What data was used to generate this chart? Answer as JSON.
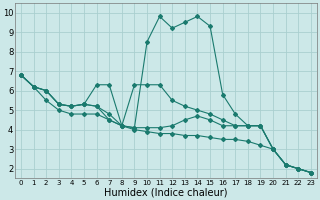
{
  "xlabel": "Humidex (Indice chaleur)",
  "bg_color": "#cce8e8",
  "grid_color": "#aacfcf",
  "line_color": "#1a7a6e",
  "xlim": [
    -0.5,
    23.5
  ],
  "ylim": [
    1.5,
    10.5
  ],
  "xticks": [
    0,
    1,
    2,
    3,
    4,
    5,
    6,
    7,
    8,
    9,
    10,
    11,
    12,
    13,
    14,
    15,
    16,
    17,
    18,
    19,
    20,
    21,
    22,
    23
  ],
  "yticks": [
    2,
    3,
    4,
    5,
    6,
    7,
    8,
    9,
    10
  ],
  "series": [
    [
      6.8,
      6.2,
      6.0,
      5.3,
      5.2,
      5.3,
      5.2,
      4.8,
      4.2,
      4.1,
      8.5,
      9.8,
      9.2,
      9.5,
      9.8,
      9.3,
      5.8,
      4.8,
      4.2,
      4.2,
      3.0,
      2.2,
      2.0,
      1.8
    ],
    [
      6.8,
      6.2,
      6.0,
      5.3,
      5.2,
      5.3,
      6.3,
      6.3,
      4.2,
      6.3,
      6.3,
      6.3,
      5.5,
      5.2,
      5.0,
      4.8,
      4.5,
      4.2,
      4.2,
      4.2,
      3.0,
      2.2,
      2.0,
      1.8
    ],
    [
      6.8,
      6.2,
      6.0,
      5.3,
      5.2,
      5.3,
      5.2,
      4.5,
      4.2,
      4.1,
      4.1,
      4.1,
      4.2,
      4.5,
      4.7,
      4.5,
      4.2,
      4.2,
      4.2,
      4.2,
      3.0,
      2.2,
      2.0,
      1.8
    ],
    [
      6.8,
      6.2,
      5.5,
      5.0,
      4.8,
      4.8,
      4.8,
      4.5,
      4.2,
      4.0,
      3.9,
      3.8,
      3.8,
      3.7,
      3.7,
      3.6,
      3.5,
      3.5,
      3.4,
      3.2,
      3.0,
      2.2,
      2.0,
      1.8
    ]
  ],
  "marker": "D",
  "marker_size": 2,
  "line_width": 0.8,
  "tick_fontsize_x": 5,
  "tick_fontsize_y": 6,
  "xlabel_fontsize": 7
}
